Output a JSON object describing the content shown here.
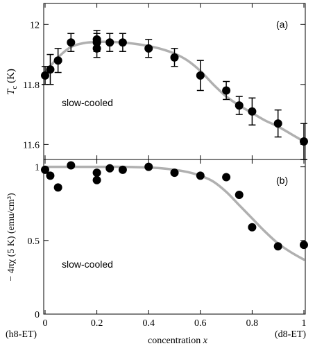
{
  "chart_data": [
    {
      "type": "scatter",
      "panel_label": "(a)",
      "annotation": "slow-cooled",
      "ylabel": "T_c (K)",
      "ylabel_parts": {
        "symbol": "T",
        "subscript": "c",
        "unit": " (K)"
      },
      "xlim": [
        0,
        1
      ],
      "ylim": [
        11.55,
        12.07
      ],
      "yticks": [
        11.6,
        11.8,
        12.0
      ],
      "ytick_labels": [
        "11.6",
        "11.8",
        "12"
      ],
      "grid": false,
      "series": [
        {
          "x": [
            0.0,
            0.02,
            0.05,
            0.1,
            0.2,
            0.2,
            0.2,
            0.25,
            0.3,
            0.4,
            0.5,
            0.6,
            0.7,
            0.75,
            0.8,
            0.9,
            1.0
          ],
          "y": [
            11.83,
            11.85,
            11.88,
            11.94,
            11.95,
            11.94,
            11.92,
            11.94,
            11.94,
            11.92,
            11.89,
            11.83,
            11.78,
            11.73,
            11.71,
            11.67,
            11.61
          ],
          "err": [
            0.03,
            0.05,
            0.04,
            0.03,
            0.03,
            0.03,
            0.03,
            0.03,
            0.03,
            0.03,
            0.03,
            0.05,
            0.03,
            0.03,
            0.045,
            0.045,
            0.06
          ]
        }
      ],
      "fit_curve": {
        "color": "#b0b0b0",
        "x": [
          0.0,
          0.05,
          0.1,
          0.15,
          0.2,
          0.25,
          0.3,
          0.35,
          0.4,
          0.45,
          0.5,
          0.55,
          0.6,
          0.65,
          0.7,
          0.75,
          0.8,
          0.85,
          0.9,
          0.95,
          1.0
        ],
        "y": [
          11.84,
          11.89,
          11.925,
          11.938,
          11.942,
          11.942,
          11.94,
          11.935,
          11.928,
          11.918,
          11.903,
          11.88,
          11.845,
          11.8,
          11.76,
          11.73,
          11.705,
          11.68,
          11.66,
          11.635,
          11.61
        ]
      }
    },
    {
      "type": "scatter",
      "panel_label": "(b)",
      "annotation": "slow-cooled",
      "ylabel": "− 4πχ (5 K) (emu/cm³)",
      "xlabel": "concentration x",
      "xlabel_parts": {
        "text": "concentration ",
        "var": "x"
      },
      "xlim": [
        0,
        1
      ],
      "ylim": [
        0,
        1.05
      ],
      "xticks": [
        0,
        0.2,
        0.4,
        0.6,
        0.8,
        1
      ],
      "xtick_labels": [
        "0",
        "0.2",
        "0.4",
        "0.6",
        "0.8",
        "1"
      ],
      "yticks": [
        0,
        0.5,
        1
      ],
      "ytick_labels": [
        "0",
        "0.5",
        "1"
      ],
      "end_labels": {
        "left": "(h8-ET)",
        "right": "(d8-ET)"
      },
      "grid": false,
      "series": [
        {
          "x": [
            0.0,
            0.02,
            0.05,
            0.1,
            0.2,
            0.2,
            0.25,
            0.3,
            0.4,
            0.5,
            0.6,
            0.7,
            0.75,
            0.8,
            0.9,
            1.0
          ],
          "y": [
            0.98,
            0.94,
            0.86,
            1.01,
            0.96,
            0.91,
            0.99,
            0.98,
            1.0,
            0.96,
            0.94,
            0.93,
            0.81,
            0.59,
            0.46,
            0.47
          ]
        }
      ],
      "fit_curve": {
        "color": "#b0b0b0",
        "x": [
          0.0,
          0.1,
          0.2,
          0.3,
          0.4,
          0.45,
          0.5,
          0.55,
          0.6,
          0.65,
          0.7,
          0.75,
          0.8,
          0.85,
          0.9,
          0.95,
          1.0
        ],
        "y": [
          1.0,
          1.0,
          1.0,
          1.0,
          0.995,
          0.99,
          0.98,
          0.965,
          0.94,
          0.9,
          0.83,
          0.74,
          0.65,
          0.56,
          0.48,
          0.42,
          0.37
        ]
      }
    }
  ]
}
